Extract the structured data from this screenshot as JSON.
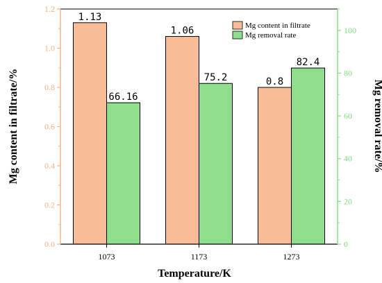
{
  "chart_data": {
    "type": "bar",
    "categories": [
      "1073",
      "1173",
      "1273"
    ],
    "xlabel": "Temperature/K",
    "series": [
      {
        "name": "Mg content in filtrate",
        "axis": "left",
        "color": "#f8bd97",
        "values": [
          1.13,
          1.06,
          0.8
        ],
        "labels": [
          "1.13",
          "1.06",
          "0.8"
        ]
      },
      {
        "name": "Mg removal rate",
        "axis": "right",
        "color": "#8fde8d",
        "values": [
          66.16,
          75.2,
          82.4
        ],
        "labels": [
          "66.16",
          "75.2",
          "82.4"
        ]
      }
    ],
    "y_left": {
      "label": "Mg content in filtrate/%",
      "range": [
        0,
        1.2
      ],
      "ticks": [
        "0.0",
        "0.2",
        "0.4",
        "0.6",
        "0.8",
        "1.0",
        "1.2"
      ],
      "color": "#f4b183"
    },
    "y_right": {
      "label": "Mg removal rate/%",
      "range": [
        0,
        110
      ],
      "ticks": [
        "0",
        "20",
        "40",
        "60",
        "80",
        "100"
      ],
      "color": "#7fde7f"
    },
    "legend": "top-right",
    "grid": false
  }
}
